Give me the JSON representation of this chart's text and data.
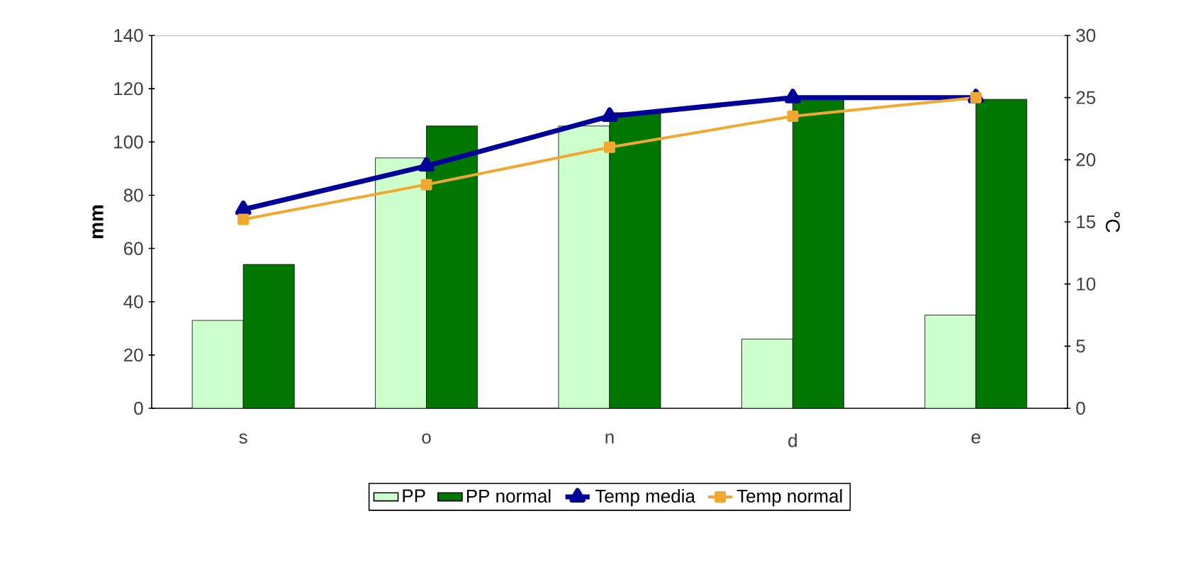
{
  "chart_data": {
    "type": "bar",
    "ylabel": "mm",
    "y2label": "°C",
    "categories": [
      "s",
      "o",
      "n",
      "d",
      "e"
    ],
    "series": [
      {
        "name": "PP",
        "color": "#ccffcc",
        "values": [
          33,
          94,
          106,
          26,
          35
        ]
      },
      {
        "name": "PP normal",
        "color": "#007700",
        "values": [
          54,
          106,
          111,
          116,
          116
        ]
      },
      {
        "name": "Temp media",
        "type": "line",
        "axis": "y2",
        "color": "#000099",
        "marker": "triangle",
        "values": [
          16,
          19.5,
          23.5,
          25,
          25
        ]
      },
      {
        "name": "Temp normal",
        "type": "line",
        "axis": "y2",
        "color": "#f0a830",
        "marker": "square",
        "values": [
          15.2,
          18,
          21,
          23.5,
          25
        ]
      }
    ],
    "ylim": [
      0,
      140
    ],
    "yticks": [
      0,
      20,
      40,
      60,
      80,
      100,
      120,
      140
    ],
    "y2lim": [
      0,
      30
    ],
    "y2ticks": [
      0,
      5,
      10,
      15,
      20,
      25,
      30
    ],
    "grid": false,
    "legend": "bottom"
  }
}
